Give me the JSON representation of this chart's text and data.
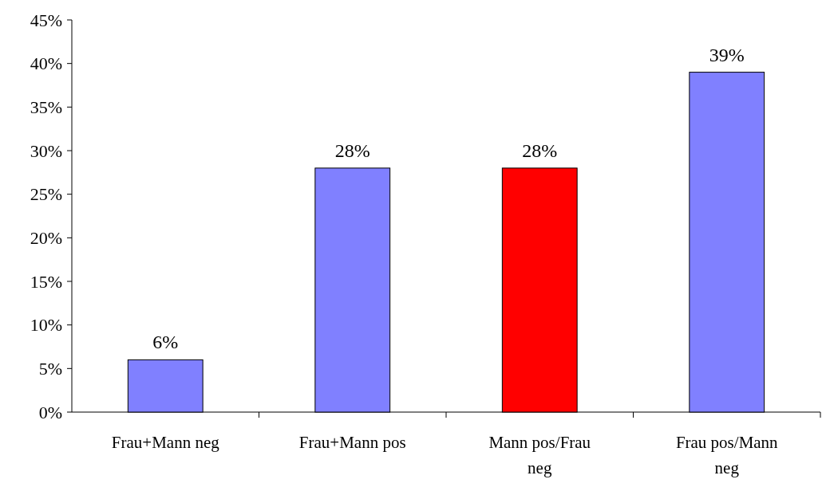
{
  "chart_data": {
    "type": "bar",
    "categories": [
      "Frau+Mann neg",
      "Frau+Mann pos",
      "Mann pos/Frau neg",
      "Frau pos/Mann neg"
    ],
    "values": [
      6,
      28,
      28,
      39
    ],
    "colors": [
      "#8080ff",
      "#8080ff",
      "#ff0000",
      "#8080ff"
    ],
    "value_labels": [
      "6%",
      "28%",
      "28%",
      "39%"
    ],
    "ylim": [
      0,
      45
    ],
    "yticks": [
      {
        "value": 0,
        "label": "0%"
      },
      {
        "value": 5,
        "label": "5%"
      },
      {
        "value": 10,
        "label": "10%"
      },
      {
        "value": 15,
        "label": "15%"
      },
      {
        "value": 20,
        "label": "20%"
      },
      {
        "value": 25,
        "label": "25%"
      },
      {
        "value": 30,
        "label": "30%"
      },
      {
        "value": 35,
        "label": "35%"
      },
      {
        "value": 40,
        "label": "40%"
      },
      {
        "value": 45,
        "label": "45%"
      }
    ],
    "grid": false
  }
}
